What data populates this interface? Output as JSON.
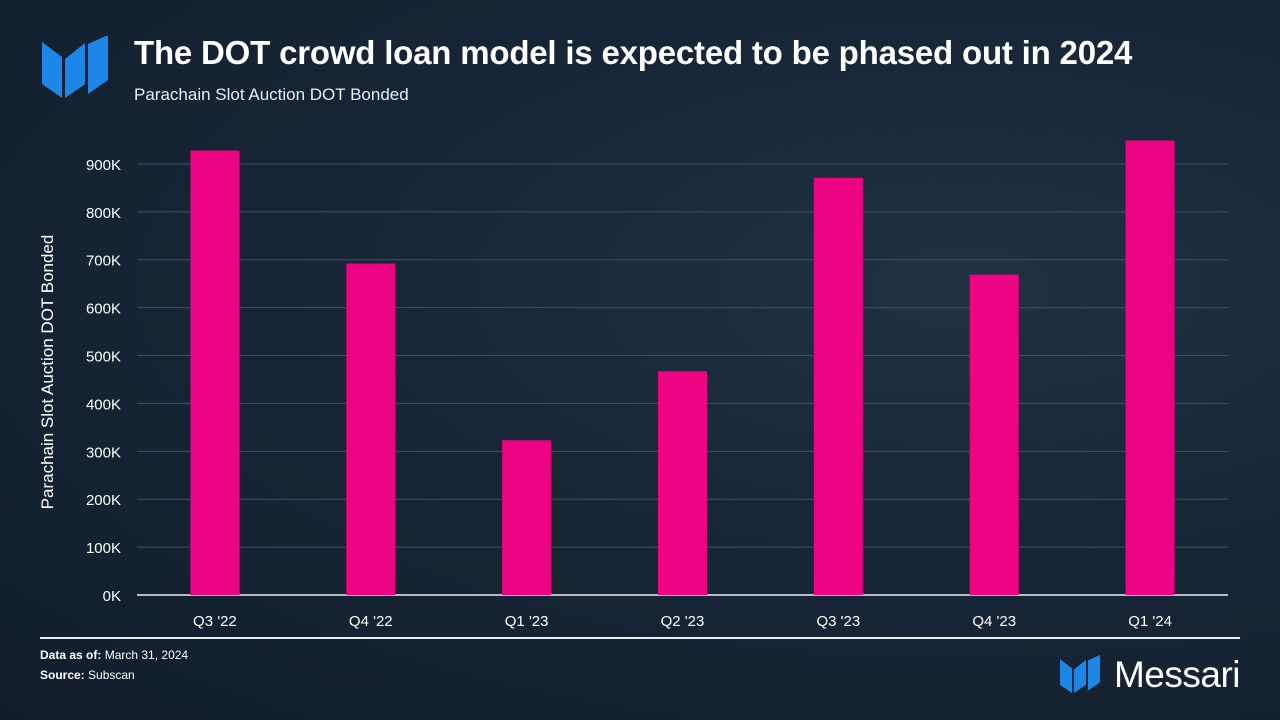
{
  "header": {
    "title": "The DOT crowd loan model is expected to be phased out in 2024",
    "subtitle": "Parachain Slot Auction DOT Bonded",
    "logo_icon": "messari-logo-icon"
  },
  "footer": {
    "data_as_of_label": "Data as of:",
    "data_as_of_value": "March 31, 2024",
    "source_label": "Source:",
    "source_value": "Subscan",
    "brand_name": "Messari"
  },
  "colors": {
    "bar": "#ec0482",
    "logo": "#1e86e6",
    "grid": "#3f5060",
    "axis": "#e9eef3"
  },
  "chart_data": {
    "type": "bar",
    "title": "Parachain Slot Auction DOT Bonded",
    "xlabel": "",
    "ylabel": "Parachain Slot Auction DOT Bonded",
    "categories": [
      "Q3 '22",
      "Q4 '22",
      "Q1 '23",
      "Q2 '23",
      "Q3 '23",
      "Q4 '23",
      "Q1 '24"
    ],
    "values": [
      928000,
      692000,
      323000,
      467000,
      871000,
      669000,
      949000
    ],
    "ylim": [
      0,
      950000
    ],
    "yticks": [
      0,
      100000,
      200000,
      300000,
      400000,
      500000,
      600000,
      700000,
      800000,
      900000
    ],
    "ytick_labels": [
      "0K",
      "100K",
      "200K",
      "300K",
      "400K",
      "500K",
      "600K",
      "700K",
      "800K",
      "900K"
    ],
    "grid": true,
    "legend": "none"
  }
}
